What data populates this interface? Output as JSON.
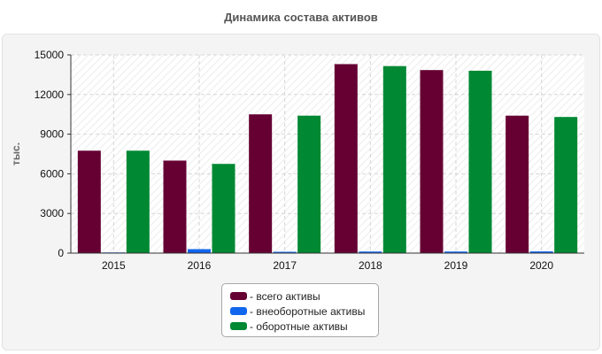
{
  "chart_data": {
    "type": "bar",
    "title": "Динамика состава активов",
    "ylabel": "тыс.",
    "xlabel": "",
    "categories": [
      "2015",
      "2016",
      "2017",
      "2018",
      "2019",
      "2020"
    ],
    "ylim": [
      0,
      15000
    ],
    "yticks": [
      0,
      3000,
      6000,
      9000,
      12000,
      15000
    ],
    "grid": true,
    "legend_position": "bottom-center",
    "series": [
      {
        "name": "- всего активы",
        "color": "#660033",
        "values": [
          7750,
          7000,
          10500,
          14300,
          13850,
          10400
        ]
      },
      {
        "name": "- внеоборотные активы",
        "color": "#1166ee",
        "values": [
          50,
          300,
          100,
          120,
          120,
          130
        ]
      },
      {
        "name": "- оборотные активы",
        "color": "#008833",
        "values": [
          7750,
          6750,
          10400,
          14150,
          13800,
          10300
        ]
      }
    ]
  }
}
